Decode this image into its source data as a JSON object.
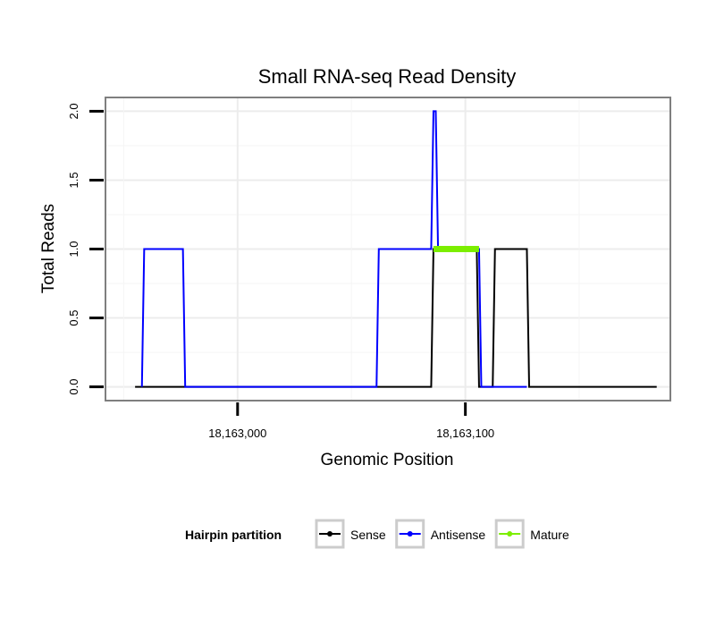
{
  "chart_data": {
    "type": "line",
    "title": "Small RNA-seq Read Density",
    "xlabel": "Genomic Position",
    "ylabel": "Total Reads",
    "xlim": [
      18162942,
      18163190
    ],
    "ylim": [
      -0.1,
      2.1
    ],
    "x_ticks": [
      {
        "value": 18163000,
        "label": "18,163,000"
      },
      {
        "value": 18163100,
        "label": "18,163,100"
      }
    ],
    "y_ticks": [
      {
        "value": 0.0,
        "label": "0.0"
      },
      {
        "value": 0.5,
        "label": "0.5"
      },
      {
        "value": 1.0,
        "label": "1.0"
      },
      {
        "value": 1.5,
        "label": "1.5"
      },
      {
        "value": 2.0,
        "label": "2.0"
      }
    ],
    "grid": true,
    "legend": {
      "title": "Hairpin partition",
      "position": "bottom"
    },
    "series": [
      {
        "name": "Sense",
        "color": "#000000",
        "x": [
          18162955,
          18163085,
          18163086,
          18163105,
          18163106,
          18163112,
          18163113,
          18163127,
          18163128,
          18163184
        ],
        "y": [
          0,
          0,
          1,
          1,
          0,
          0,
          1,
          1,
          0,
          0
        ]
      },
      {
        "name": "Antisense",
        "color": "#0000ff",
        "x": [
          18162958,
          18162959,
          18162976,
          18162977,
          18163061,
          18163062,
          18163085,
          18163086,
          18163087,
          18163088,
          18163106,
          18163107,
          18163113,
          18163127
        ],
        "y": [
          0,
          1,
          1,
          0,
          0,
          1,
          1,
          2,
          2,
          1,
          1,
          0,
          0,
          0
        ]
      },
      {
        "name": "Mature",
        "color": "#7cee00",
        "x": [
          18163086,
          18163106
        ],
        "y": [
          1,
          1
        ]
      }
    ]
  }
}
